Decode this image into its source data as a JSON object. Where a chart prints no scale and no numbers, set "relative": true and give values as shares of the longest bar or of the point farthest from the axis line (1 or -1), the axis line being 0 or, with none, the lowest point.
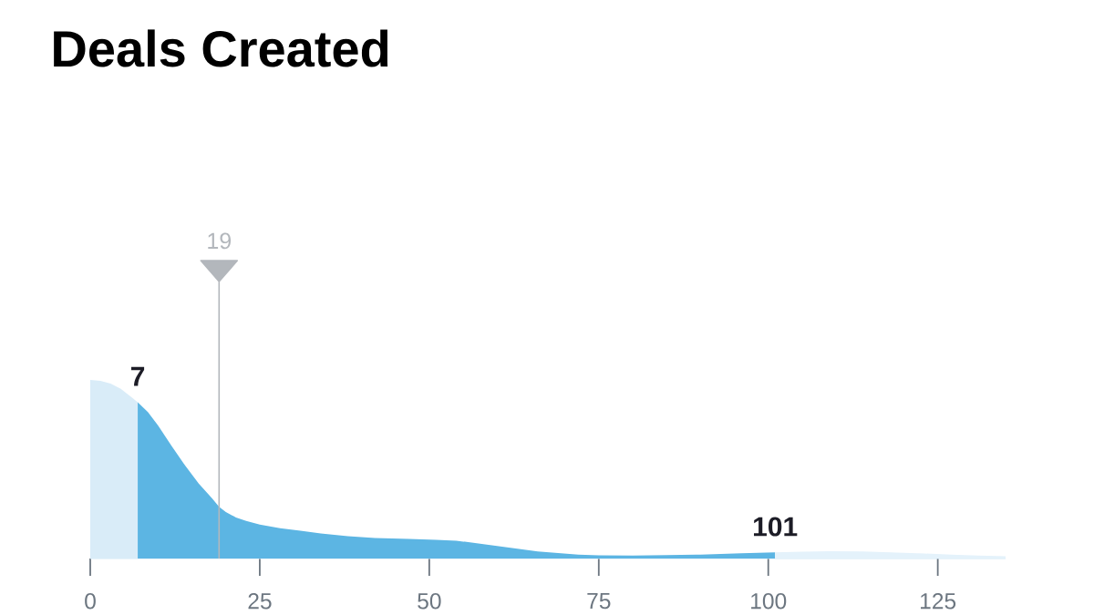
{
  "chart_data": {
    "type": "area",
    "title": "Deals Created",
    "relative": true,
    "xlim": [
      0,
      135
    ],
    "xticks": [
      0,
      25,
      50,
      75,
      100,
      125
    ],
    "series": [
      {
        "color": "#d9ecf8",
        "x": [
          0,
          1.5,
          3,
          4.5,
          6,
          7
        ],
        "values": [
          1.0,
          0.995,
          0.98,
          0.95,
          0.905,
          0.875
        ]
      },
      {
        "color": "#5cb5e3",
        "x": [
          7,
          8.5,
          10,
          12,
          14,
          16,
          18,
          19,
          20,
          21.5,
          23,
          25,
          28,
          31,
          34,
          38,
          42,
          47,
          51,
          54,
          56,
          58,
          60,
          63,
          66,
          69,
          72,
          75,
          80,
          85,
          90,
          96,
          101
        ],
        "values": [
          0.875,
          0.82,
          0.745,
          0.63,
          0.52,
          0.42,
          0.335,
          0.29,
          0.26,
          0.23,
          0.21,
          0.19,
          0.17,
          0.155,
          0.14,
          0.125,
          0.115,
          0.11,
          0.105,
          0.1,
          0.09,
          0.08,
          0.07,
          0.055,
          0.04,
          0.03,
          0.022,
          0.018,
          0.017,
          0.019,
          0.022,
          0.029,
          0.034
        ]
      },
      {
        "color": "#e4f2fb",
        "x": [
          101,
          105,
          109,
          114,
          118,
          123,
          127,
          131,
          135
        ],
        "values": [
          0.034,
          0.038,
          0.041,
          0.039,
          0.035,
          0.028,
          0.022,
          0.017,
          0.013
        ]
      }
    ],
    "ref_lines": [
      {
        "axis": "x",
        "value": 19,
        "label": "19",
        "color": "#b3b7bc"
      }
    ],
    "annotations": [
      {
        "text": "7",
        "x": 7,
        "y": 0.875
      },
      {
        "text": "101",
        "x": 101,
        "y": 0.034
      }
    ]
  }
}
